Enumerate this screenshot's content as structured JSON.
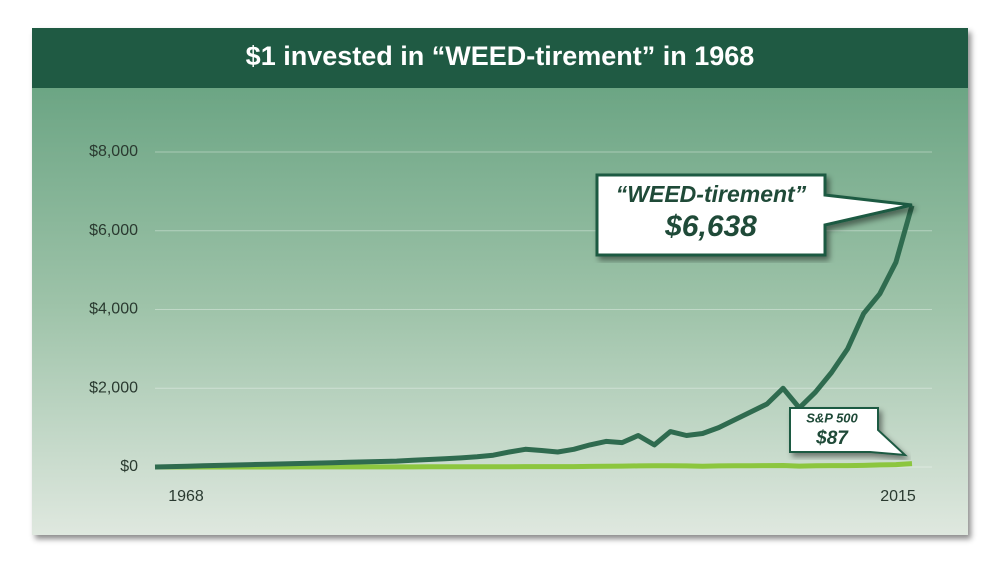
{
  "chart_data": {
    "type": "line",
    "title": "$1 invested in “WEED-tirement” in 1968",
    "x": [
      1968,
      1969,
      1970,
      1971,
      1972,
      1973,
      1974,
      1975,
      1976,
      1977,
      1978,
      1979,
      1980,
      1981,
      1982,
      1983,
      1984,
      1985,
      1986,
      1987,
      1988,
      1989,
      1990,
      1991,
      1992,
      1993,
      1994,
      1995,
      1996,
      1997,
      1998,
      1999,
      2000,
      2001,
      2002,
      2003,
      2004,
      2005,
      2006,
      2007,
      2008,
      2009,
      2010,
      2011,
      2012,
      2013,
      2014,
      2015
    ],
    "xlim": [
      1968,
      2015
    ],
    "xticks": [
      1968,
      2015
    ],
    "ylim": [
      0,
      8000
    ],
    "yticks": [
      {
        "value": 0,
        "label": "$0"
      },
      {
        "value": 2000,
        "label": "$2,000"
      },
      {
        "value": 4000,
        "label": "$4,000"
      },
      {
        "value": 6000,
        "label": "$6,000"
      },
      {
        "value": 8000,
        "label": "$8,000"
      }
    ],
    "grid": true,
    "series": [
      {
        "name": "“WEED-tirement”",
        "color": "#2f6b4f",
        "end_label": "$6,638",
        "values": [
          1,
          10,
          20,
          30,
          40,
          50,
          60,
          70,
          80,
          90,
          100,
          110,
          120,
          130,
          140,
          150,
          170,
          190,
          210,
          230,
          260,
          300,
          380,
          450,
          420,
          380,
          450,
          560,
          650,
          620,
          800,
          560,
          900,
          800,
          850,
          1000,
          1200,
          1400,
          1600,
          2000,
          1500,
          1900,
          2400,
          3000,
          3900,
          4400,
          5200,
          6638
        ]
      },
      {
        "name": "S&P 500",
        "color": "#8cc63f",
        "end_label": "$87",
        "values": [
          1,
          1,
          1,
          1,
          1,
          1,
          1,
          1,
          1,
          2,
          2,
          2,
          2,
          2,
          3,
          3,
          3,
          4,
          5,
          5,
          6,
          7,
          7,
          9,
          10,
          10,
          10,
          14,
          17,
          22,
          28,
          34,
          31,
          27,
          21,
          27,
          30,
          31,
          36,
          38,
          24,
          30,
          35,
          35,
          41,
          54,
          61,
          87
        ]
      }
    ]
  }
}
